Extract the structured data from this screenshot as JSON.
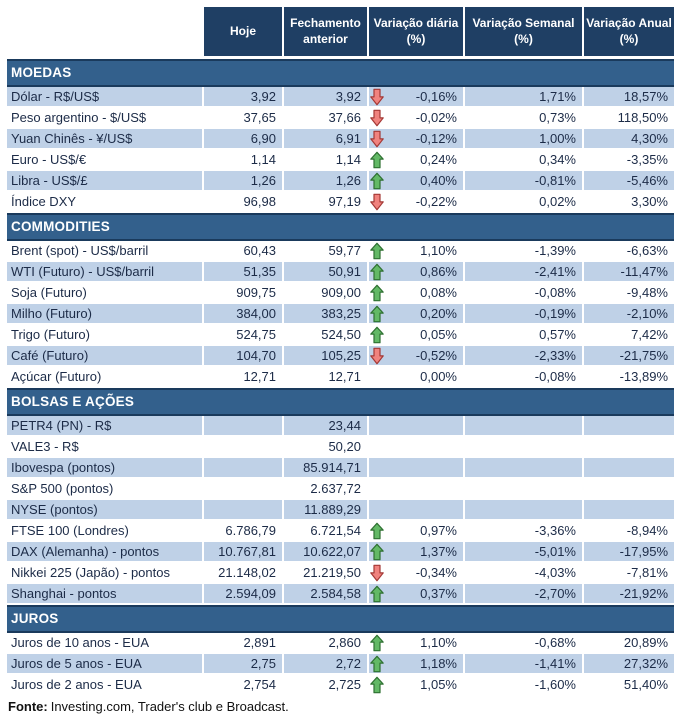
{
  "chart_data": {
    "type": "table",
    "columns": [
      "",
      "Hoje",
      "Fechamento anterior",
      "Variação diária (%)",
      "Variação Semanal (%)",
      "Variação Anual (%)"
    ],
    "sections": [
      {
        "title": "MOEDAS",
        "rows": [
          {
            "label": "Dólar - R$/US$",
            "hoje": "3,92",
            "fechamento": "3,92",
            "arrow": "down",
            "var_diaria": "-0,16%",
            "var_semanal": "1,71%",
            "var_anual": "18,57%"
          },
          {
            "label": "Peso argentino - $/US$",
            "hoje": "37,65",
            "fechamento": "37,66",
            "arrow": "down",
            "var_diaria": "-0,02%",
            "var_semanal": "0,73%",
            "var_anual": "118,50%"
          },
          {
            "label": "Yuan Chinês - ¥/US$",
            "hoje": "6,90",
            "fechamento": "6,91",
            "arrow": "down",
            "var_diaria": "-0,12%",
            "var_semanal": "1,00%",
            "var_anual": "4,30%"
          },
          {
            "label": "Euro - US$/€",
            "hoje": "1,14",
            "fechamento": "1,14",
            "arrow": "up",
            "var_diaria": "0,24%",
            "var_semanal": "0,34%",
            "var_anual": "-3,35%"
          },
          {
            "label": "Libra - US$/£",
            "hoje": "1,26",
            "fechamento": "1,26",
            "arrow": "up",
            "var_diaria": "0,40%",
            "var_semanal": "-0,81%",
            "var_anual": "-5,46%"
          },
          {
            "label": "Índice DXY",
            "hoje": "96,98",
            "fechamento": "97,19",
            "arrow": "down",
            "var_diaria": "-0,22%",
            "var_semanal": "0,02%",
            "var_anual": "3,30%"
          }
        ]
      },
      {
        "title": "COMMODITIES",
        "rows": [
          {
            "label": "Brent (spot) - US$/barril",
            "hoje": "60,43",
            "fechamento": "59,77",
            "arrow": "up",
            "var_diaria": "1,10%",
            "var_semanal": "-1,39%",
            "var_anual": "-6,63%"
          },
          {
            "label": "WTI (Futuro) - US$/barril",
            "hoje": "51,35",
            "fechamento": "50,91",
            "arrow": "up",
            "var_diaria": "0,86%",
            "var_semanal": "-2,41%",
            "var_anual": "-11,47%"
          },
          {
            "label": "Soja (Futuro)",
            "hoje": "909,75",
            "fechamento": "909,00",
            "arrow": "up",
            "var_diaria": "0,08%",
            "var_semanal": "-0,08%",
            "var_anual": "-9,48%"
          },
          {
            "label": "Milho (Futuro)",
            "hoje": "384,00",
            "fechamento": "383,25",
            "arrow": "up",
            "var_diaria": "0,20%",
            "var_semanal": "-0,19%",
            "var_anual": "-2,10%"
          },
          {
            "label": "Trigo (Futuro)",
            "hoje": "524,75",
            "fechamento": "524,50",
            "arrow": "up",
            "var_diaria": "0,05%",
            "var_semanal": "0,57%",
            "var_anual": "7,42%"
          },
          {
            "label": "Café (Futuro)",
            "hoje": "104,70",
            "fechamento": "105,25",
            "arrow": "down",
            "var_diaria": "-0,52%",
            "var_semanal": "-2,33%",
            "var_anual": "-21,75%"
          },
          {
            "label": "Açúcar (Futuro)",
            "hoje": "12,71",
            "fechamento": "12,71",
            "arrow": null,
            "var_diaria": "0,00%",
            "var_semanal": "-0,08%",
            "var_anual": "-13,89%"
          }
        ]
      },
      {
        "title": "BOLSAS E AÇÕES",
        "rows": [
          {
            "label": "PETR4 (PN) - R$",
            "hoje": "",
            "fechamento": "23,44",
            "arrow": null,
            "var_diaria": "",
            "var_semanal": "",
            "var_anual": ""
          },
          {
            "label": "VALE3 - R$",
            "hoje": "",
            "fechamento": "50,20",
            "arrow": null,
            "var_diaria": "",
            "var_semanal": "",
            "var_anual": ""
          },
          {
            "label": "Ibovespa (pontos)",
            "hoje": "",
            "fechamento": "85.914,71",
            "arrow": null,
            "var_diaria": "",
            "var_semanal": "",
            "var_anual": ""
          },
          {
            "label": "S&P 500 (pontos)",
            "hoje": "",
            "fechamento": "2.637,72",
            "arrow": null,
            "var_diaria": "",
            "var_semanal": "",
            "var_anual": ""
          },
          {
            "label": "NYSE (pontos)",
            "hoje": "",
            "fechamento": "11.889,29",
            "arrow": null,
            "var_diaria": "",
            "var_semanal": "",
            "var_anual": ""
          },
          {
            "label": "FTSE 100 (Londres)",
            "hoje": "6.786,79",
            "fechamento": "6.721,54",
            "arrow": "up",
            "var_diaria": "0,97%",
            "var_semanal": "-3,36%",
            "var_anual": "-8,94%"
          },
          {
            "label": "DAX (Alemanha) - pontos",
            "hoje": "10.767,81",
            "fechamento": "10.622,07",
            "arrow": "up",
            "var_diaria": "1,37%",
            "var_semanal": "-5,01%",
            "var_anual": "-17,95%"
          },
          {
            "label": "Nikkei 225 (Japão) - pontos",
            "hoje": "21.148,02",
            "fechamento": "21.219,50",
            "arrow": "down",
            "var_diaria": "-0,34%",
            "var_semanal": "-4,03%",
            "var_anual": "-7,81%"
          },
          {
            "label": "Shanghai - pontos",
            "hoje": "2.594,09",
            "fechamento": "2.584,58",
            "arrow": "up",
            "var_diaria": "0,37%",
            "var_semanal": "-2,70%",
            "var_anual": "-21,92%"
          }
        ]
      },
      {
        "title": "JUROS",
        "rows": [
          {
            "label": "Juros de 10 anos - EUA",
            "hoje": "2,891",
            "fechamento": "2,860",
            "arrow": "up",
            "var_diaria": "1,10%",
            "var_semanal": "-0,68%",
            "var_anual": "20,89%"
          },
          {
            "label": "Juros de 5 anos - EUA",
            "hoje": "2,75",
            "fechamento": "2,72",
            "arrow": "up",
            "var_diaria": "1,18%",
            "var_semanal": "-1,41%",
            "var_anual": "27,32%"
          },
          {
            "label": "Juros de 2 anos - EUA",
            "hoje": "2,754",
            "fechamento": "2,725",
            "arrow": "up",
            "var_diaria": "1,05%",
            "var_semanal": "-1,60%",
            "var_anual": "51,40%"
          }
        ]
      }
    ],
    "source_note": {
      "label": "Fonte:",
      "text": "Investing.com, Trader's club e Broadcast."
    }
  },
  "colors": {
    "header_bg": "#1F3F64",
    "section_bg": "#33608C",
    "section_border": "#1A3A5C",
    "row_alt_bg": "#BFD1E7",
    "text": "#1C2B47",
    "arrow_up_fill": "#63B966",
    "arrow_up_border": "#2E7031",
    "arrow_down_fill": "#F0827E",
    "arrow_down_border": "#A43835"
  }
}
